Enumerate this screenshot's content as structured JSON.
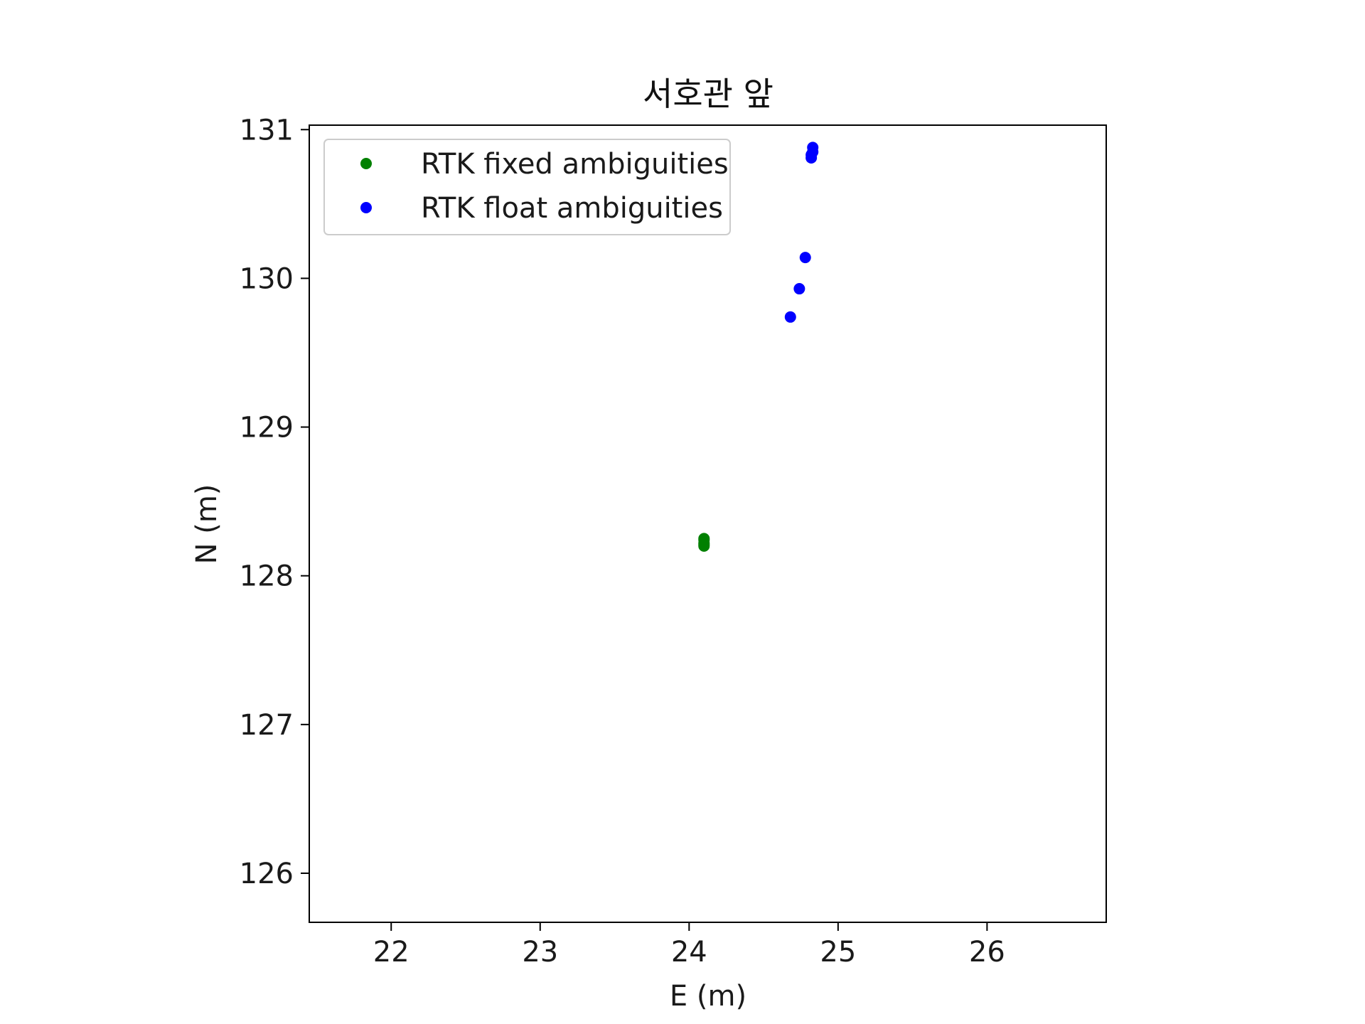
{
  "chart_data": {
    "type": "scatter",
    "title": "서호관 앞",
    "xlabel": "E (m)",
    "ylabel": "N (m)",
    "xlim": [
      21.45,
      26.8
    ],
    "ylim": [
      125.67,
      131.03
    ],
    "xticks": [
      22,
      23,
      24,
      25,
      26
    ],
    "yticks": [
      126,
      127,
      128,
      129,
      130,
      131
    ],
    "xtick_labels": [
      "22",
      "23",
      "24",
      "25",
      "26"
    ],
    "ytick_labels": [
      "126",
      "127",
      "128",
      "129",
      "130",
      "131"
    ],
    "grid": false,
    "legend_position": "upper-left",
    "series": [
      {
        "name": "RTK fixed ambiguities",
        "color": "#008000",
        "x": [
          24.1,
          24.1,
          24.1,
          24.1,
          24.1
        ],
        "y": [
          128.25,
          128.24,
          128.22,
          128.21,
          128.2
        ]
      },
      {
        "name": "RTK float ambiguities",
        "color": "#0000ff",
        "x": [
          24.83,
          24.83,
          24.82,
          24.82,
          24.78,
          24.74,
          24.68
        ],
        "y": [
          130.88,
          130.85,
          130.83,
          130.81,
          130.14,
          129.93,
          129.74
        ]
      }
    ]
  }
}
